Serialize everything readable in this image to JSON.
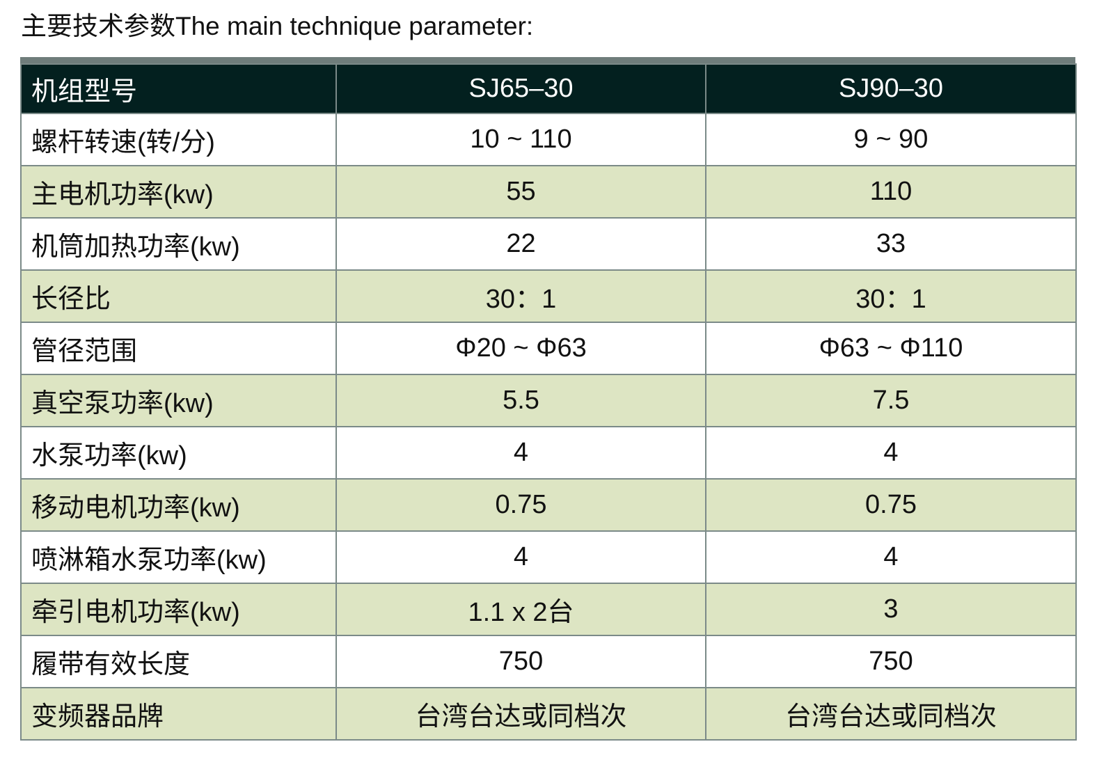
{
  "title": "主要技术参数The main technique parameter:",
  "colors": {
    "header_bg": "#03201f",
    "stripe_bg": "#dde5c3",
    "border": "#7b8a88"
  },
  "table": {
    "headers": [
      "机组型号",
      "SJ65–30",
      "SJ90–30"
    ],
    "rows": [
      [
        "螺杆转速(转/分)",
        "10  ~  110",
        "9 ~ 90"
      ],
      [
        "主电机功率(kw)",
        "55",
        "110"
      ],
      [
        "机筒加热功率(kw)",
        "22",
        "33"
      ],
      [
        "长径比",
        "30：1",
        "30：1"
      ],
      [
        "管径范围",
        "Φ20 ~ Φ63",
        "Φ63 ~ Φ110"
      ],
      [
        "真空泵功率(kw)",
        "5.5",
        "7.5"
      ],
      [
        "水泵功率(kw)",
        "4",
        "4"
      ],
      [
        "移动电机功率(kw)",
        "0.75",
        "0.75"
      ],
      [
        "喷淋箱水泵功率(kw)",
        "4",
        "4"
      ],
      [
        "牵引电机功率(kw)",
        "1.1 x 2台",
        "3"
      ],
      [
        "履带有效长度",
        "750",
        "750"
      ],
      [
        "变频器品牌",
        "台湾台达或同档次",
        "台湾台达或同档次"
      ]
    ]
  }
}
